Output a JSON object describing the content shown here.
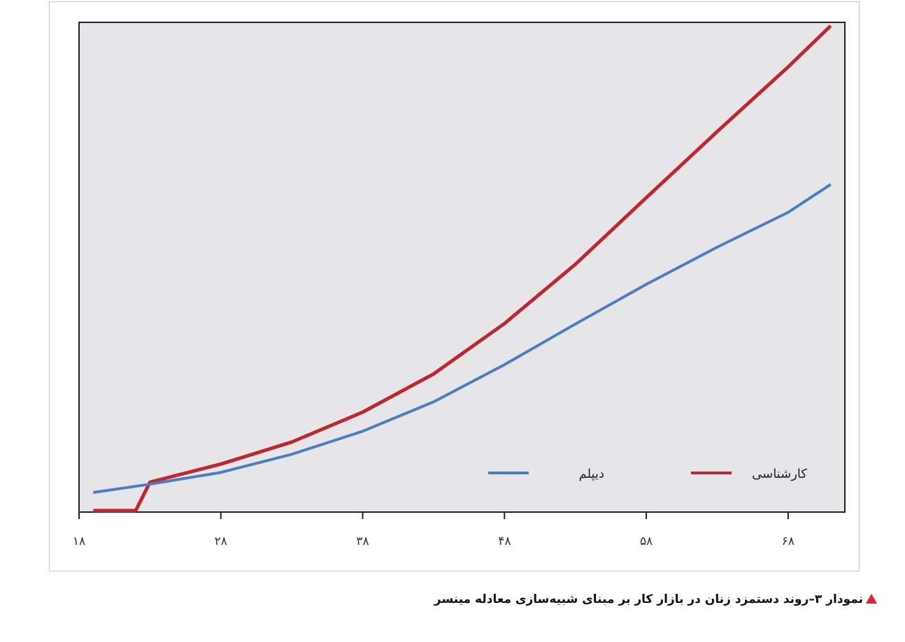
{
  "chart_data": {
    "type": "line",
    "caption": "نمودار ۳–روند دستمزد زنان در بازار کار بر مبنای شبیه‌سازی معادله مینسر",
    "xlim": [
      18,
      72
    ],
    "xticks": [
      {
        "value": 18,
        "label": "۱۸"
      },
      {
        "value": 28,
        "label": "۲۸"
      },
      {
        "value": 38,
        "label": "۳۸"
      },
      {
        "value": 48,
        "label": "۴۸"
      },
      {
        "value": 58,
        "label": "۵۸"
      },
      {
        "value": 68,
        "label": "۶۸"
      }
    ],
    "ylim": [
      0,
      100
    ],
    "legend": "lower right",
    "series": [
      {
        "name": "کارشناسی",
        "color": "#c0262d",
        "x": [
          19,
          22,
          23,
          28,
          33,
          38,
          43,
          48,
          53,
          58,
          63,
          68,
          71
        ],
        "values": [
          0.3,
          0.3,
          6.1,
          9.8,
          14.3,
          20.4,
          28.2,
          38.5,
          50.6,
          64.2,
          77.7,
          90.9,
          99.3
        ]
      },
      {
        "name": "دیپلم",
        "color": "#4a7ec0",
        "x": [
          19,
          23,
          28,
          33,
          38,
          43,
          48,
          53,
          58,
          63,
          68,
          71
        ],
        "values": [
          4.0,
          5.7,
          8.1,
          11.8,
          16.5,
          22.5,
          30.1,
          38.4,
          46.5,
          54.1,
          61.2,
          66.9
        ]
      }
    ]
  }
}
